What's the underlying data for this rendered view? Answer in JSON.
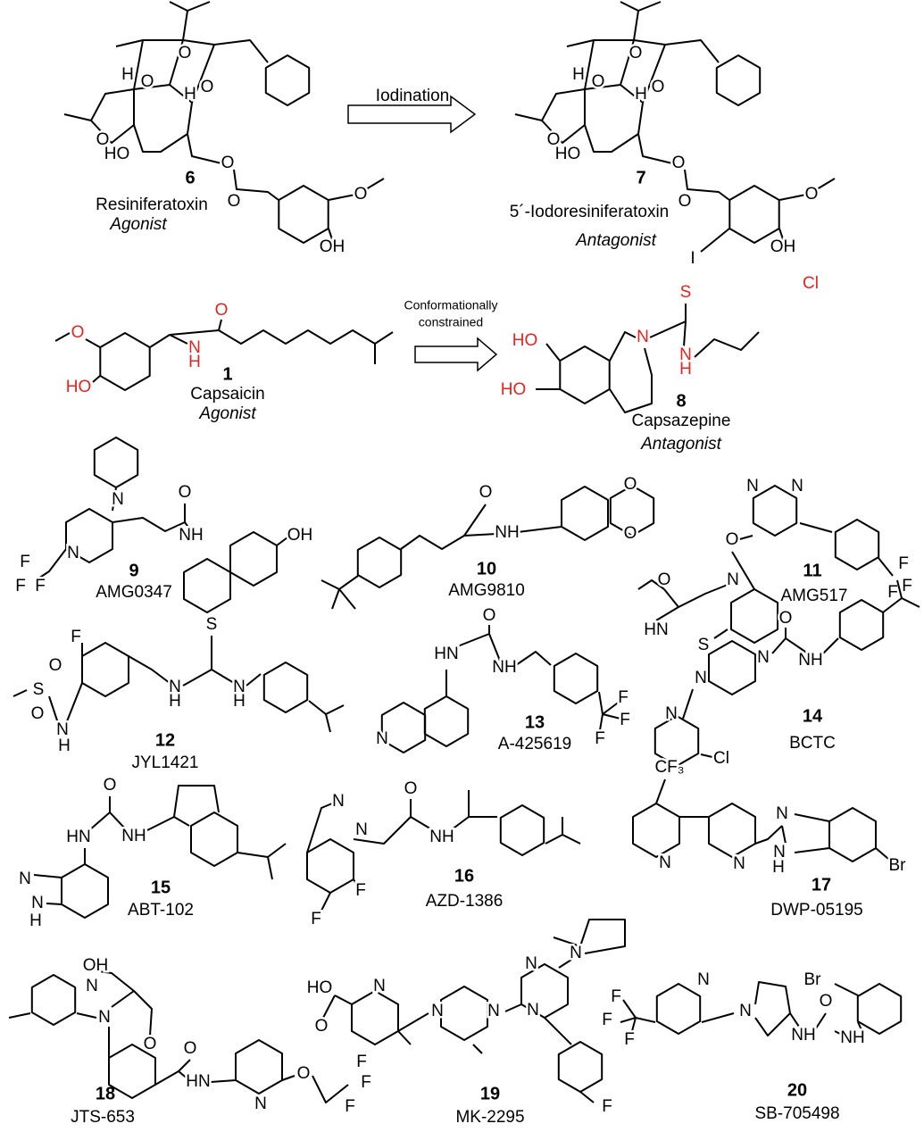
{
  "figure": {
    "arrows": [
      {
        "lines": [
          "Iodination"
        ]
      },
      {
        "lines": [
          "Conformationally",
          "constrained"
        ]
      }
    ],
    "compounds": [
      {
        "number": "6",
        "name": "Resiniferatoxin",
        "role": "Agonist",
        "atoms": [
          "H",
          "O",
          "O",
          "O",
          "H",
          "O",
          "HO",
          "O",
          "O",
          "O",
          "OH"
        ]
      },
      {
        "number": "7",
        "name": "5´-Iodoresiniferatoxin",
        "role": "Antagonist",
        "atoms": [
          "H",
          "O",
          "O",
          "O",
          "H",
          "O",
          "HO",
          "O",
          "O",
          "O",
          "OH",
          "I"
        ]
      },
      {
        "number": "1",
        "name": "Capsaicin",
        "role": "Agonist",
        "atoms": [
          "O",
          "HO",
          "N",
          "H",
          "O"
        ]
      },
      {
        "number": "8",
        "name": "Capsazepine",
        "role": "Antagonist",
        "atoms": [
          "HO",
          "HO",
          "N",
          "S",
          "N",
          "H",
          "Cl"
        ]
      },
      {
        "number": "9",
        "name": "AMG0347",
        "atoms": [
          "N",
          "N",
          "F",
          "F",
          "F",
          "O",
          "NH",
          "OH"
        ]
      },
      {
        "number": "10",
        "name": "AMG9810",
        "atoms": [
          "O",
          "NH",
          "O",
          "O"
        ]
      },
      {
        "number": "11",
        "name": "AMG517",
        "atoms": [
          "N",
          "N",
          "O",
          "O",
          "N",
          "HN",
          "S",
          "F",
          "F",
          "F"
        ]
      },
      {
        "number": "12",
        "name": "JYL1421",
        "atoms": [
          "F",
          "O",
          "S",
          "O",
          "N",
          "H",
          "S",
          "N",
          "H",
          "N",
          "H"
        ]
      },
      {
        "number": "13",
        "name": "A-425619",
        "atoms": [
          "O",
          "HN",
          "NH",
          "N",
          "F",
          "F",
          "F"
        ]
      },
      {
        "number": "14",
        "name": "BCTC",
        "atoms": [
          "O",
          "N",
          "N",
          "N",
          "NH",
          "Cl"
        ]
      },
      {
        "number": "15",
        "name": "ABT-102",
        "atoms": [
          "O",
          "HN",
          "NH",
          "N",
          "N",
          "H"
        ]
      },
      {
        "number": "16",
        "name": "AZD-1386",
        "atoms": [
          "N",
          "N",
          "O",
          "NH",
          "F",
          "F"
        ]
      },
      {
        "number": "17",
        "name": "DWP-05195",
        "atoms": [
          "CF₃",
          "N",
          "N",
          "N",
          "N",
          "H",
          "Br"
        ]
      },
      {
        "number": "18",
        "name": "JTS-653",
        "atoms": [
          "OH",
          "N",
          "N",
          "O",
          "O",
          "HN",
          "N",
          "O",
          "F",
          "F",
          "F"
        ]
      },
      {
        "number": "19",
        "name": "MK-2295",
        "atoms": [
          "HO",
          "O",
          "N",
          "N",
          "N",
          "N",
          "N",
          "N",
          "F"
        ]
      },
      {
        "number": "20",
        "name": "SB-705498",
        "atoms": [
          "F",
          "F",
          "F",
          "N",
          "N",
          "Br",
          "O",
          "NH",
          "NH"
        ]
      }
    ]
  }
}
